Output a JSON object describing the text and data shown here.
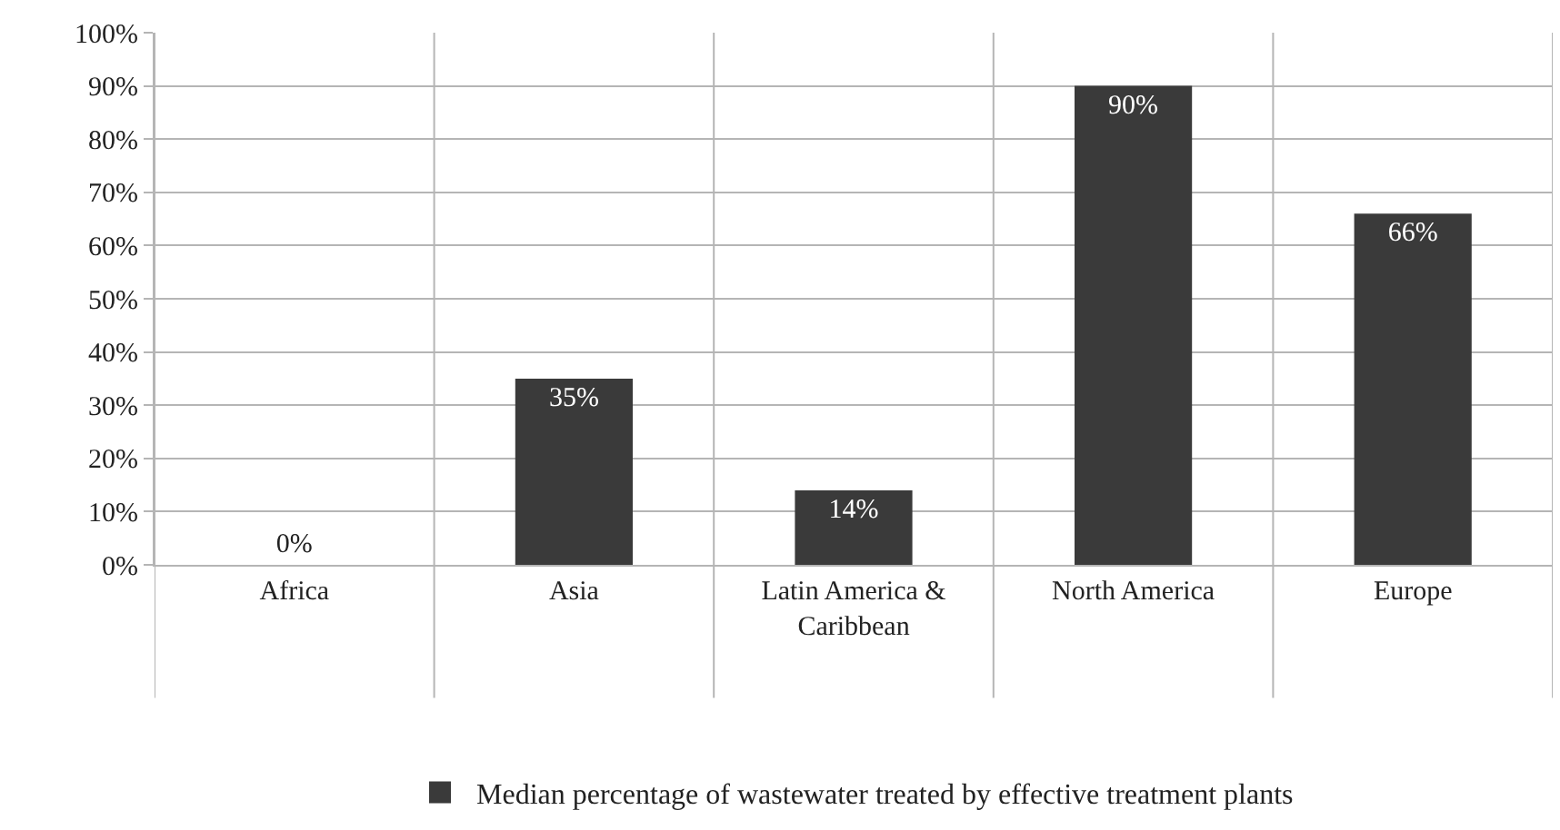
{
  "chart_data": {
    "type": "bar",
    "categories": [
      "Africa",
      "Asia",
      "Latin America & Caribbean",
      "North America",
      "Europe"
    ],
    "series": [
      {
        "name": "Median percentage of wastewater treated by effective treatment plants",
        "color": "#3a3a3a",
        "values": [
          0,
          35,
          14,
          90,
          66
        ],
        "value_labels": [
          "0%",
          "35%",
          "14%",
          "90%",
          "66%"
        ]
      }
    ],
    "ylim": [
      0,
      100
    ],
    "yticks": [
      {
        "value": 0,
        "label": "0%"
      },
      {
        "value": 10,
        "label": "10%"
      },
      {
        "value": 20,
        "label": "20%"
      },
      {
        "value": 30,
        "label": "30%"
      },
      {
        "value": 40,
        "label": "40%"
      },
      {
        "value": 50,
        "label": "50%"
      },
      {
        "value": 60,
        "label": "60%"
      },
      {
        "value": 70,
        "label": "70%"
      },
      {
        "value": 80,
        "label": "80%"
      },
      {
        "value": 90,
        "label": "90%"
      },
      {
        "value": 100,
        "label": "100%"
      }
    ],
    "grid": true,
    "legend": "bottom"
  }
}
